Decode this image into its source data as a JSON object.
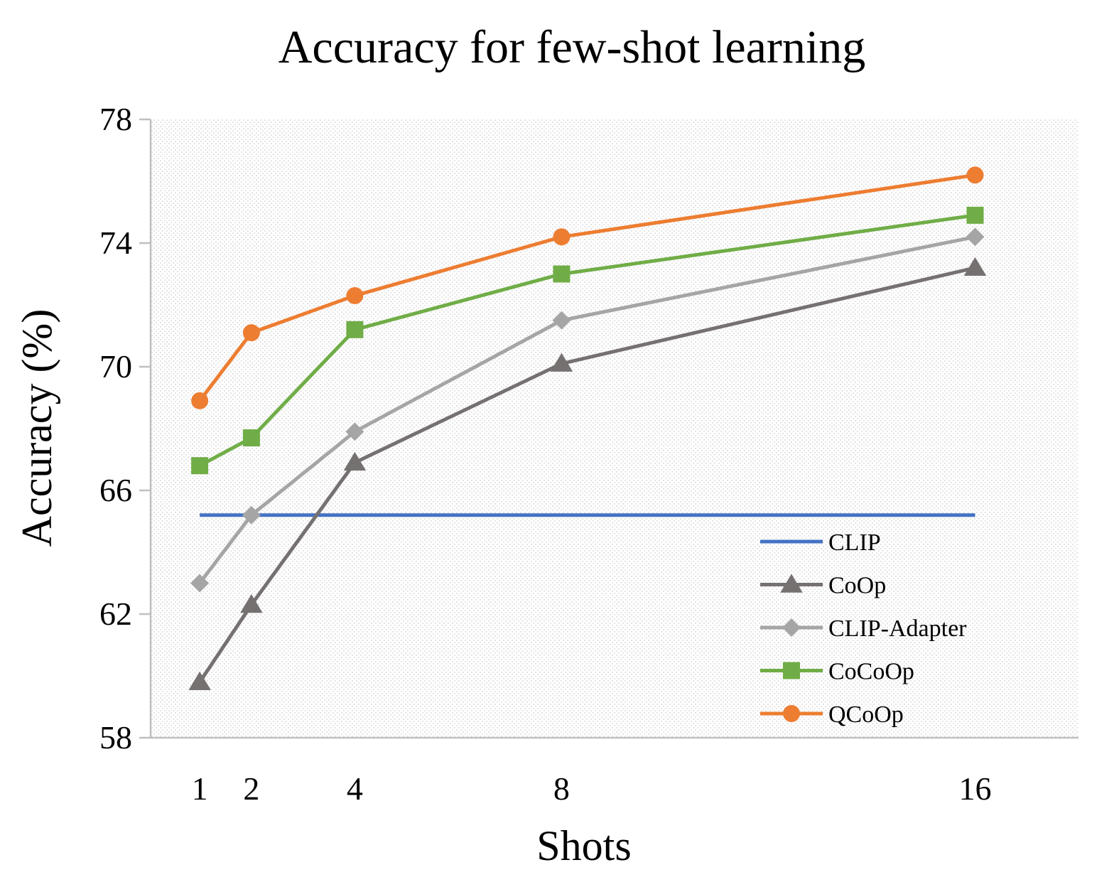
{
  "chart_data": {
    "type": "line",
    "title": "Accuracy for few-shot learning",
    "xlabel": "Shots",
    "ylabel": "Accuracy (%)",
    "x": [
      1,
      2,
      4,
      8,
      16
    ],
    "xticks": [
      "1",
      "2",
      "4",
      "8",
      "16"
    ],
    "xlim": [
      0.05,
      18.0
    ],
    "ylim": [
      58,
      78
    ],
    "yticks": [
      "58",
      "62",
      "66",
      "70",
      "74",
      "78"
    ],
    "grid": false,
    "legend_position": "bottom-right",
    "series": [
      {
        "name": "CLIP",
        "marker": "none",
        "color": "#4472C4",
        "values": [
          65.2,
          65.2,
          65.2,
          65.2,
          65.2
        ]
      },
      {
        "name": "CoOp",
        "marker": "triangle",
        "color": "#767171",
        "values": [
          59.8,
          62.3,
          66.9,
          70.1,
          73.2
        ]
      },
      {
        "name": "CLIP-Adapter",
        "marker": "diamond",
        "color": "#A5A5A5",
        "values": [
          63.0,
          65.2,
          67.9,
          71.5,
          74.2
        ]
      },
      {
        "name": "CoCoOp",
        "marker": "square",
        "color": "#70AD47",
        "values": [
          66.8,
          67.7,
          71.2,
          73.0,
          74.9
        ]
      },
      {
        "name": "QCoOp",
        "marker": "circle",
        "color": "#ED7D31",
        "values": [
          68.9,
          71.1,
          72.3,
          74.2,
          76.2
        ]
      }
    ]
  }
}
